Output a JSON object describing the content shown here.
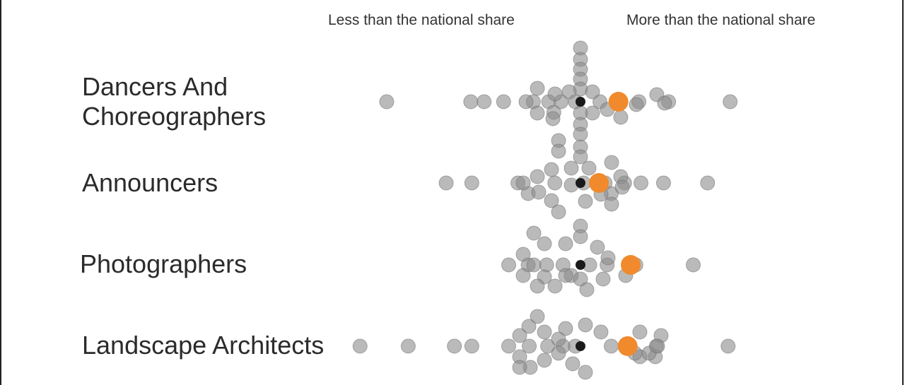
{
  "header": {
    "left": "Less than the national share",
    "right": "More than the national share"
  },
  "colors": {
    "other_dot": "#8c8c8c",
    "highlight_dot": "#f08a2c",
    "national_dot": "#1a1a1a"
  },
  "chart_data": {
    "type": "scatter",
    "subtype": "beeswarm",
    "categories": [
      "Dancers And\nChoreographers",
      "Announcers",
      "Photographers",
      "Landscape Architects"
    ],
    "national_share_value": 0,
    "series": [
      {
        "values": [
          [
            -18.9,
            -10.7,
            -9.4,
            -7.5,
            -4.6,
            -3.1,
            -2.6,
            -1.9,
            -0.5,
            1.9,
            3.7,
            5.7,
            8.6,
            14.6
          ],
          [
            -13.1,
            -10.6,
            -6.1,
            -5.1,
            -2.5,
            0.3,
            2.4,
            3.0,
            4.3,
            5.9,
            8.1,
            12.4
          ],
          [
            -7.0,
            -5.1,
            -3.3,
            -1.7,
            -0.9,
            0.9,
            2.6,
            5.4,
            11.0
          ],
          [
            -21.5,
            -16.8,
            -12.3,
            -10.6,
            -7.0,
            -5.0,
            -3.2,
            -1.7,
            -0.5,
            3.0,
            4.8,
            5.8,
            7.4,
            7.3,
            14.4
          ]
        ]
      }
    ],
    "highlighted_values": [
      3.7,
      1.8,
      4.9,
      4.6
    ],
    "national_label_left": "Less than the national share",
    "national_label_right": "More than the national share"
  }
}
